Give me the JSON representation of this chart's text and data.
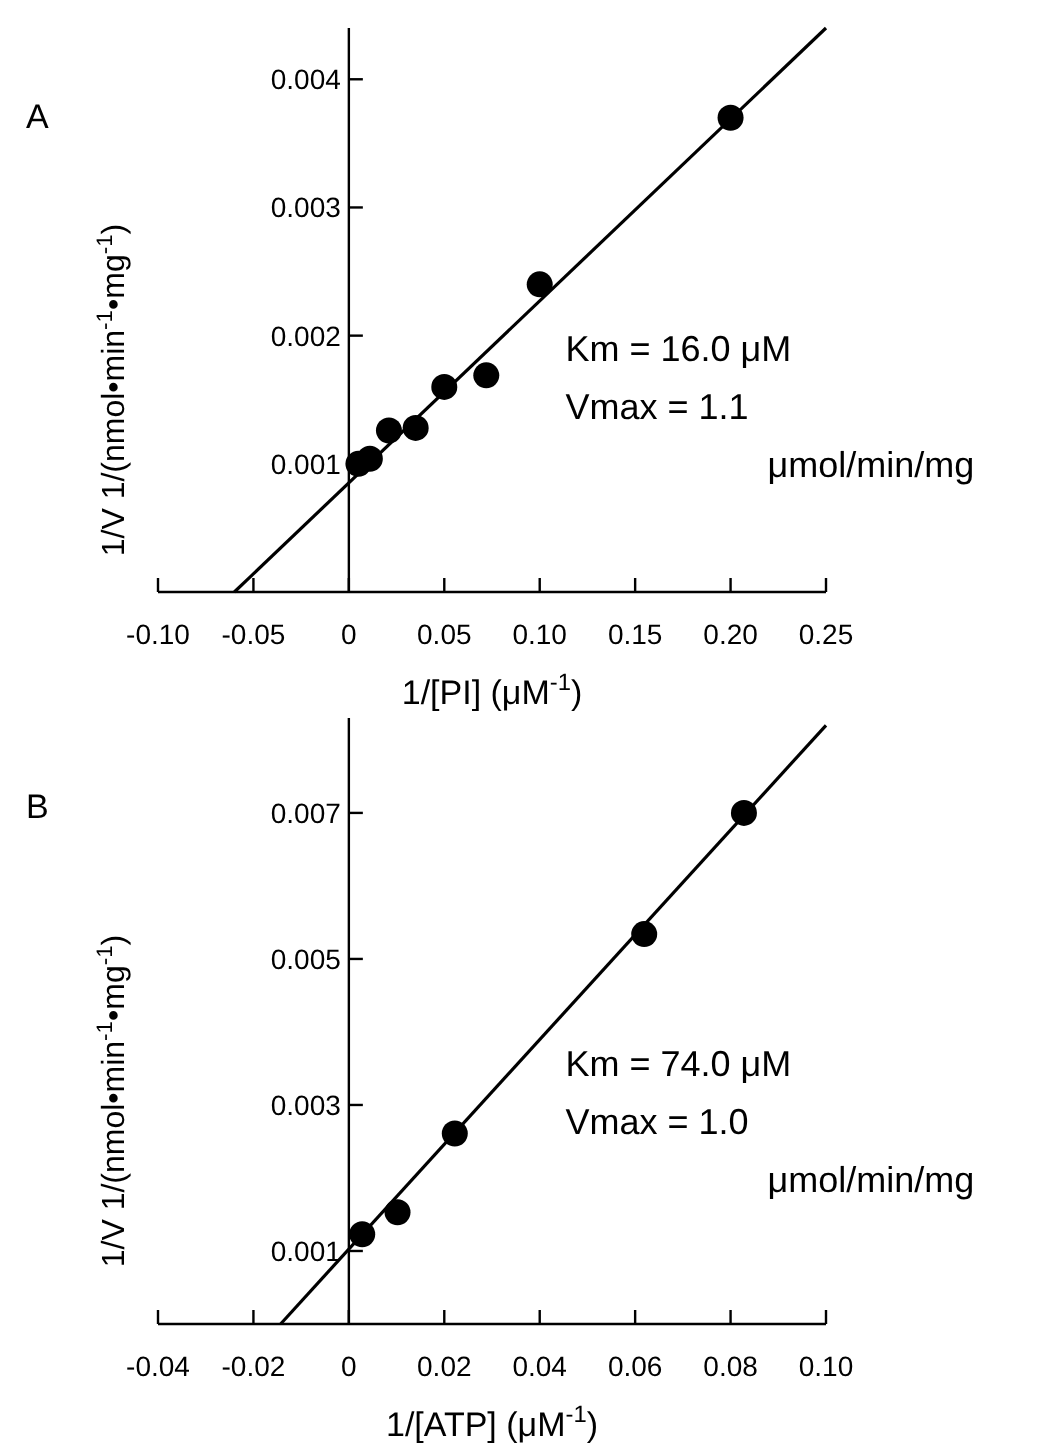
{
  "chart_data": [
    {
      "type": "scatter",
      "title": "A",
      "xlabel": "1/[PI] (μM$^{-1}$)",
      "ylabel": "1/V  1/(nmol•min$^{-1}$•mg$^{-1}$)",
      "xlim": [
        -0.1,
        0.25
      ],
      "xticks": [
        {
          "value": -0.1,
          "label": "-0.10"
        },
        -0.05,
        0,
        0.05,
        {
          "value": 0.1,
          "label": "0.10"
        },
        0.15,
        {
          "value": 0.2,
          "label": "0.20"
        },
        0.25
      ],
      "ylim": [
        0,
        0.0044
      ],
      "yticks": [
        0.001,
        0.002,
        0.003,
        0.004
      ],
      "marker": "circle",
      "annotations": [
        "Km  =  16.0  μM",
        "Vmax  =  1.1",
        "μmol/min/mg"
      ],
      "series": [
        {
          "color": "#000000",
          "x": [
            0.005,
            0.011,
            0.021,
            0.035,
            0.05,
            0.072,
            0.1,
            0.2
          ],
          "values": [
            0.001,
            0.00104,
            0.00126,
            0.00128,
            0.0016,
            0.00169,
            0.0024,
            0.0037
          ]
        },
        {
          "type": "line",
          "color": "#000000",
          "marker": "none",
          "x": [
            -0.06,
            0.25
          ],
          "values": [
            0,
            0.0044
          ]
        }
      ]
    },
    {
      "type": "scatter",
      "title": "B",
      "xlabel": "1/[ATP] (μM$^{-1}$)",
      "ylabel": "1/V  1/(nmol•min$^{-1}$•mg$^{-1}$)",
      "xlim": [
        -0.04,
        0.1
      ],
      "xticks": [
        -0.04,
        -0.02,
        0,
        0.02,
        0.04,
        0.06,
        0.08,
        {
          "value": 0.1,
          "label": "0.10"
        }
      ],
      "ylim": [
        0,
        0.0083
      ],
      "yticks": [
        0.001,
        0.003,
        0.005,
        0.007
      ],
      "marker": "circle",
      "annotations": [
        "Km  =  74.0  μM",
        "Vmax  =  1.0",
        "μmol/min/mg"
      ],
      "series": [
        {
          "color": "#000000",
          "x": [
            0.0028,
            0.0102,
            0.0222,
            0.0619,
            0.0828
          ],
          "values": [
            0.00123,
            0.00153,
            0.00261,
            0.00534,
            0.007
          ]
        },
        {
          "type": "line",
          "color": "#000000",
          "marker": "none",
          "x": [
            -0.0143,
            0.1
          ],
          "values": [
            0,
            0.0082
          ]
        }
      ]
    }
  ]
}
